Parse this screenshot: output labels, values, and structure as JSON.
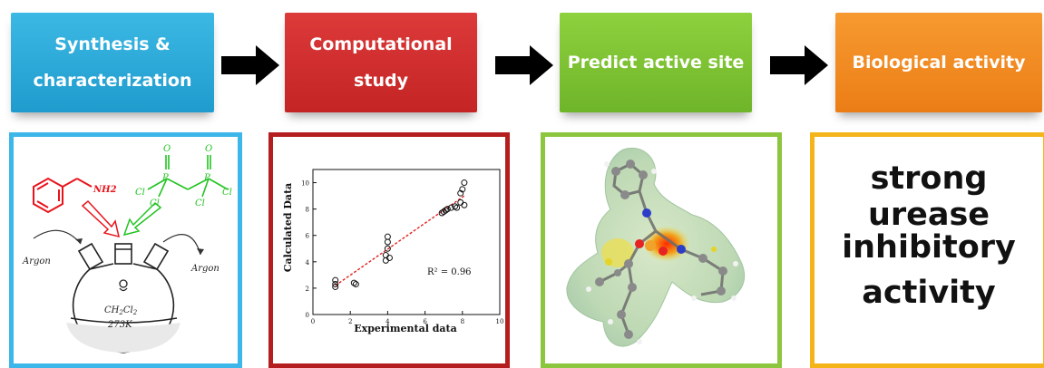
{
  "steps": [
    {
      "line1": "Synthesis &",
      "line2": "characterization",
      "color": "#2aa9d9"
    },
    {
      "line1": "Computational",
      "line2": "study",
      "color": "#d02f2f"
    },
    {
      "line1": "Predict active site",
      "line2": "",
      "color": "#7fc334"
    },
    {
      "line1": "Biological activity",
      "line2": "",
      "color": "#f08a22"
    }
  ],
  "synthesis": {
    "amine_label": "NH2",
    "cl_labels": [
      "Cl",
      "Cl",
      "Cl",
      "Cl"
    ],
    "o_labels": [
      "O",
      "O"
    ],
    "p_labels": [
      "P",
      "P"
    ],
    "argon_left": "Argon",
    "argon_right": "Argon",
    "solvent": "CH2Cl2",
    "temperature": "273K"
  },
  "chart_data": {
    "type": "scatter",
    "xlabel": "Experimental data",
    "ylabel": "Calculated  Data",
    "xlim": [
      0,
      10
    ],
    "ylim": [
      0,
      11
    ],
    "xticks": [
      0,
      2,
      4,
      6,
      8,
      10
    ],
    "yticks": [
      0,
      2,
      4,
      6,
      8,
      10
    ],
    "annotation": "R² = 0.96",
    "points": [
      [
        1.2,
        2.1
      ],
      [
        1.2,
        2.3
      ],
      [
        1.2,
        2.6
      ],
      [
        2.2,
        2.4
      ],
      [
        2.3,
        2.3
      ],
      [
        3.9,
        4.1
      ],
      [
        3.9,
        4.5
      ],
      [
        4.0,
        5.0
      ],
      [
        4.0,
        5.5
      ],
      [
        4.0,
        5.9
      ],
      [
        4.1,
        4.3
      ],
      [
        6.9,
        7.7
      ],
      [
        7.0,
        7.8
      ],
      [
        7.1,
        7.9
      ],
      [
        7.2,
        8.0
      ],
      [
        7.4,
        8.1
      ],
      [
        7.6,
        8.2
      ],
      [
        7.7,
        8.1
      ],
      [
        7.9,
        8.5
      ],
      [
        7.9,
        9.2
      ],
      [
        8.0,
        9.5
      ],
      [
        8.1,
        10.0
      ],
      [
        8.1,
        8.3
      ]
    ],
    "fit": {
      "x": [
        1.2,
        8.1
      ],
      "y": [
        2.2,
        9.0
      ]
    }
  },
  "result": {
    "line1": "strong urease",
    "line2": "inhibitory",
    "line3": "activity"
  }
}
